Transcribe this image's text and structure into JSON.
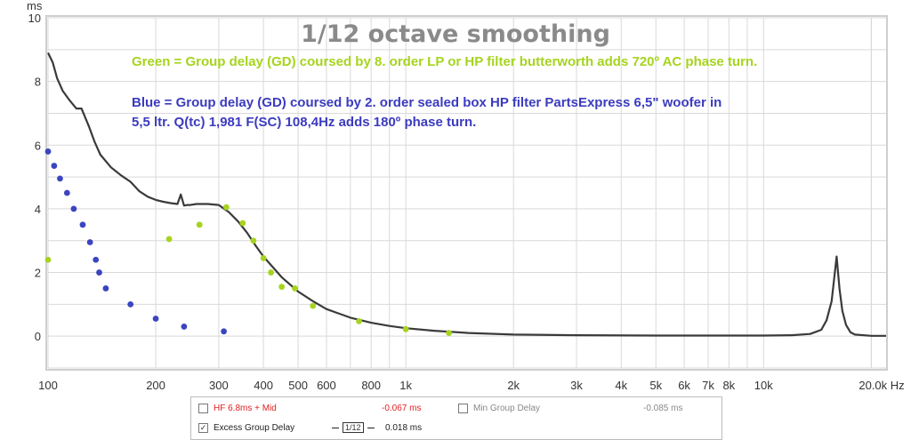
{
  "chart_data": {
    "type": "line",
    "title": "1/12 octave smoothing",
    "ylabel": "ms",
    "xlabel": "Hz",
    "x_scale": "log",
    "xlim": [
      100,
      22000
    ],
    "ylim": [
      -1,
      10
    ],
    "grid": true,
    "x_ticks": [
      {
        "v": 100,
        "label": "100"
      },
      {
        "v": 200,
        "label": "200"
      },
      {
        "v": 300,
        "label": "300"
      },
      {
        "v": 400,
        "label": "400"
      },
      {
        "v": 500,
        "label": "500"
      },
      {
        "v": 600,
        "label": "600"
      },
      {
        "v": 800,
        "label": "800"
      },
      {
        "v": 1000,
        "label": "1k"
      },
      {
        "v": 2000,
        "label": "2k"
      },
      {
        "v": 3000,
        "label": "3k"
      },
      {
        "v": 4000,
        "label": "4k"
      },
      {
        "v": 5000,
        "label": "5k"
      },
      {
        "v": 6000,
        "label": "6k"
      },
      {
        "v": 7000,
        "label": "7k"
      },
      {
        "v": 8000,
        "label": "8k"
      },
      {
        "v": 10000,
        "label": "10k"
      },
      {
        "v": 20000,
        "label": "20.0k Hz"
      }
    ],
    "y_ticks": [
      {
        "v": 0,
        "label": "0"
      },
      {
        "v": 2,
        "label": "2"
      },
      {
        "v": 4,
        "label": "4"
      },
      {
        "v": 6,
        "label": "6"
      },
      {
        "v": 8,
        "label": "8"
      },
      {
        "v": 10,
        "label": "10"
      }
    ],
    "annotations": [
      "Green = Group delay (GD) coursed by 8. order LP or HP filter butterworth adds 720º AC phase turn.",
      "Blue = Group delay (GD) coursed by 2. order sealed box HP filter PartsExpress 6,5\" woofer in",
      "5,5 ltr. Q(tc) 1,981 F(SC) 108,4Hz adds 180º phase turn."
    ],
    "series": [
      {
        "color": "#3a3a3a",
        "style": "line",
        "x": [
          100,
          103,
          106,
          110,
          115,
          120,
          124,
          130,
          135,
          140,
          150,
          160,
          170,
          180,
          190,
          200,
          210,
          220,
          230,
          235,
          240,
          245,
          250,
          260,
          280,
          300,
          320,
          340,
          360,
          380,
          400,
          450,
          500,
          550,
          600,
          700,
          800,
          900,
          1000,
          1200,
          1500,
          2000,
          3000,
          5000,
          8000,
          10000,
          12000,
          13500,
          14500,
          15000,
          15500,
          16000,
          16300,
          16600,
          17000,
          17500,
          18000,
          20000,
          22000
        ],
        "y": [
          8.9,
          8.6,
          8.1,
          7.7,
          7.4,
          7.15,
          7.15,
          6.6,
          6.1,
          5.7,
          5.3,
          5.05,
          4.85,
          4.55,
          4.38,
          4.28,
          4.22,
          4.18,
          4.15,
          4.45,
          4.1,
          4.12,
          4.12,
          4.15,
          4.15,
          4.12,
          3.9,
          3.6,
          3.25,
          2.85,
          2.5,
          1.85,
          1.4,
          1.1,
          0.85,
          0.58,
          0.42,
          0.32,
          0.25,
          0.17,
          0.1,
          0.05,
          0.03,
          0.02,
          0.02,
          0.02,
          0.03,
          0.07,
          0.2,
          0.5,
          1.1,
          2.5,
          1.5,
          0.8,
          0.35,
          0.12,
          0.05,
          0.01,
          0.01
        ]
      },
      {
        "color": "#a6d41e",
        "style": "points",
        "x": [
          100,
          218,
          265,
          315,
          350,
          375,
          400,
          420,
          450,
          490,
          550,
          740,
          1000,
          1320
        ],
        "y": [
          2.4,
          3.05,
          3.5,
          4.05,
          3.55,
          3.0,
          2.45,
          2.0,
          1.55,
          1.5,
          0.95,
          0.47,
          0.22,
          0.1
        ]
      },
      {
        "color": "#3b45c0",
        "style": "points",
        "x": [
          100,
          104,
          108,
          113,
          118,
          125,
          131,
          136,
          139,
          145,
          170,
          200,
          240,
          310
        ],
        "y": [
          5.8,
          5.35,
          4.95,
          4.5,
          4.0,
          3.5,
          2.95,
          2.4,
          2.0,
          1.5,
          1.0,
          0.55,
          0.3,
          0.15
        ]
      }
    ]
  },
  "legend": {
    "item1": {
      "label": "HF 6.8ms + Mid",
      "value": "-0.067 ms",
      "checked": false,
      "color": "#e02020"
    },
    "item2": {
      "label": "Min Group Delay",
      "value": "-0.085 ms",
      "checked": false,
      "color": "#888888"
    },
    "item3": {
      "label": "Excess Group Delay",
      "value": "0.018 ms",
      "checked": true,
      "color": "#222222",
      "smoothing": "1/12",
      "check_mark": "✓"
    }
  }
}
